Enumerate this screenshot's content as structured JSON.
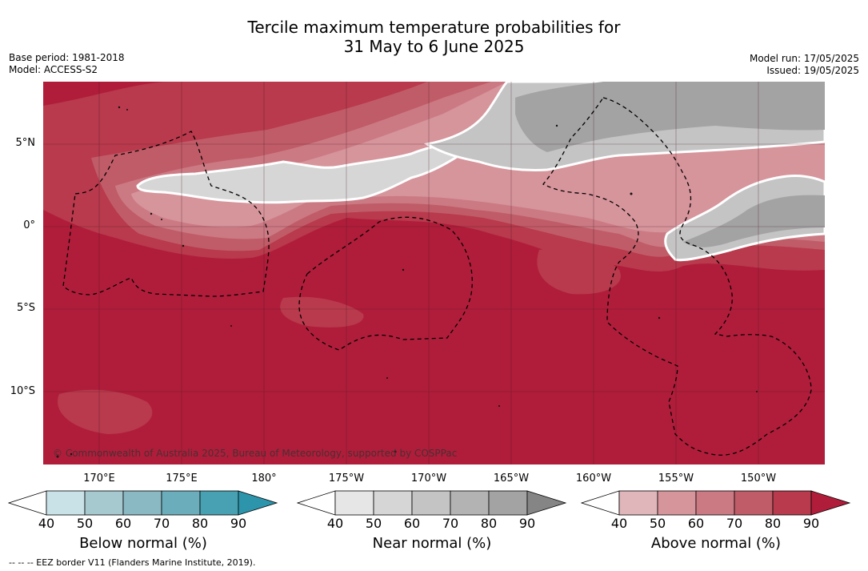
{
  "title": {
    "line1": "Tercile maximum temperature probabilities for",
    "line2": "31 May to 6 June 2025"
  },
  "meta_left": {
    "base_period": "Base period: 1981-2018",
    "model": "Model: ACCESS-S2"
  },
  "meta_right": {
    "model_run": "Model run: 17/05/2025",
    "issued": "Issued: 19/05/2025"
  },
  "lat_labels": [
    "5°N",
    "0°",
    "5°S",
    "10°S"
  ],
  "lon_labels": [
    "170°E",
    "175°E",
    "180°",
    "175°W",
    "170°W",
    "165°W",
    "160°W",
    "155°W",
    "150°W"
  ],
  "copyright": "© Commonwealth of Australia 2025, Bureau of Meteorology, supported by COSPPac",
  "colorbars": [
    {
      "title": "Below normal (%)",
      "ticks": [
        "40",
        "50",
        "60",
        "70",
        "80",
        "90"
      ],
      "colors": [
        "#c9e2e8",
        "#a6c8cf",
        "#8ab8c3",
        "#6cadbc",
        "#47a1b2",
        "#2c95ac"
      ]
    },
    {
      "title": "Near normal (%)",
      "ticks": [
        "40",
        "50",
        "60",
        "70",
        "80",
        "90"
      ],
      "colors": [
        "#e6e6e6",
        "#d6d6d6",
        "#c4c4c4",
        "#b3b3b3",
        "#a3a3a3",
        "#858585"
      ]
    },
    {
      "title": "Above normal (%)",
      "ticks": [
        "40",
        "50",
        "60",
        "70",
        "80",
        "90"
      ],
      "colors": [
        "#e0b6bb",
        "#d6949b",
        "#cb7a84",
        "#c05c68",
        "#b83a4c",
        "#b01d3a"
      ]
    }
  ],
  "footer": "--  --  -- EEZ border V11 (Flanders Marine Institute, 2019)."
}
